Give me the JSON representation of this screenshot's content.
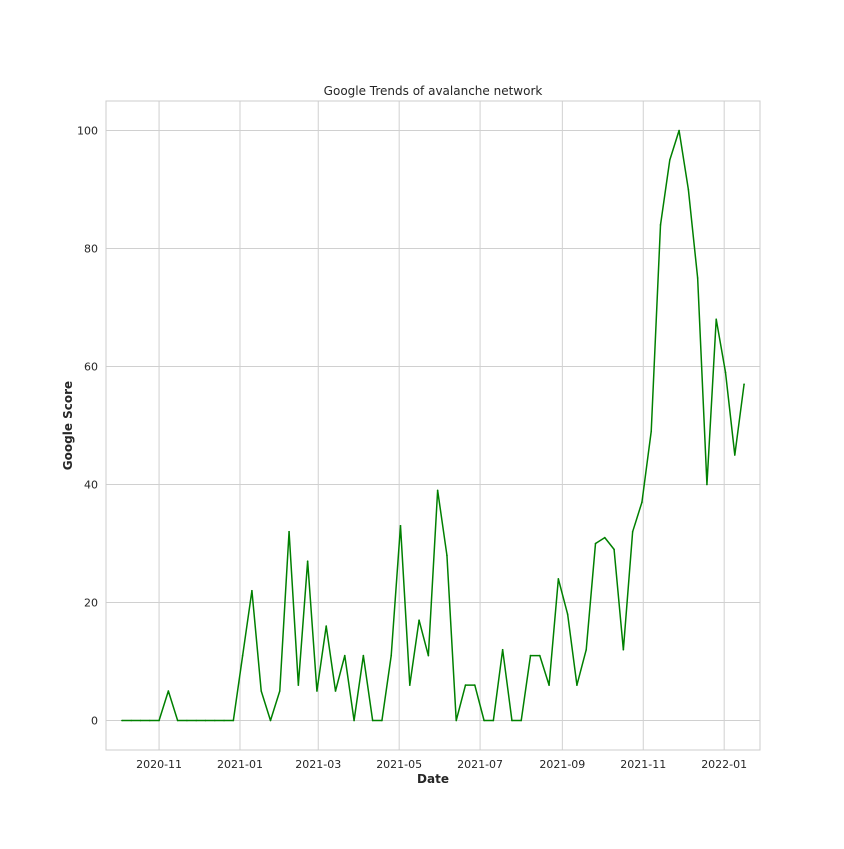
{
  "chart_data": {
    "type": "line",
    "title": "Google Trends of avalanche network",
    "xlabel": "Date",
    "ylabel": "Google Score",
    "grid": true,
    "legend": "none",
    "line_color": "#008000",
    "xlim": [
      "2020-09-22",
      "2022-01-28"
    ],
    "ylim": [
      -5,
      105
    ],
    "x_ticks": [
      "2020-11-01",
      "2021-01-01",
      "2021-03-01",
      "2021-05-01",
      "2021-07-01",
      "2021-09-01",
      "2021-11-01",
      "2022-01-01"
    ],
    "x_tick_labels": [
      "2020-11",
      "2021-01",
      "2021-03",
      "2021-05",
      "2021-07",
      "2021-09",
      "2021-11",
      "2022-01"
    ],
    "y_ticks": [
      0,
      20,
      40,
      60,
      80,
      100
    ],
    "y_tick_labels": [
      "0",
      "20",
      "40",
      "60",
      "80",
      "100"
    ],
    "series": [
      {
        "x": [
          "2020-10-04",
          "2020-10-11",
          "2020-10-18",
          "2020-10-25",
          "2020-11-01",
          "2020-11-08",
          "2020-11-15",
          "2020-11-22",
          "2020-11-29",
          "2020-12-06",
          "2020-12-13",
          "2020-12-20",
          "2020-12-27",
          "2021-01-03",
          "2021-01-10",
          "2021-01-17",
          "2021-01-24",
          "2021-01-31",
          "2021-02-07",
          "2021-02-14",
          "2021-02-21",
          "2021-02-28",
          "2021-03-07",
          "2021-03-14",
          "2021-03-21",
          "2021-03-28",
          "2021-04-04",
          "2021-04-11",
          "2021-04-18",
          "2021-04-25",
          "2021-05-02",
          "2021-05-09",
          "2021-05-16",
          "2021-05-23",
          "2021-05-30",
          "2021-06-06",
          "2021-06-13",
          "2021-06-20",
          "2021-06-27",
          "2021-07-04",
          "2021-07-11",
          "2021-07-18",
          "2021-07-25",
          "2021-08-01",
          "2021-08-08",
          "2021-08-15",
          "2021-08-22",
          "2021-08-29",
          "2021-09-05",
          "2021-09-12",
          "2021-09-19",
          "2021-09-26",
          "2021-10-03",
          "2021-10-10",
          "2021-10-17",
          "2021-10-24",
          "2021-10-31",
          "2021-11-07",
          "2021-11-14",
          "2021-11-21",
          "2021-11-28",
          "2021-12-05",
          "2021-12-12",
          "2021-12-19",
          "2021-12-26",
          "2022-01-02",
          "2022-01-09",
          "2022-01-16"
        ],
        "values": [
          0,
          0,
          0,
          0,
          0,
          5,
          0,
          0,
          0,
          0,
          0,
          0,
          0,
          11,
          22,
          5,
          0,
          5,
          32,
          6,
          27,
          5,
          16,
          5,
          11,
          0,
          11,
          0,
          0,
          11,
          33,
          6,
          17,
          11,
          39,
          28,
          0,
          6,
          6,
          0,
          0,
          12,
          0,
          0,
          11,
          11,
          6,
          24,
          18,
          6,
          12,
          30,
          31,
          29,
          12,
          32,
          37,
          49,
          84,
          95,
          100,
          90,
          75,
          40,
          68,
          59,
          45,
          57
        ]
      }
    ]
  }
}
